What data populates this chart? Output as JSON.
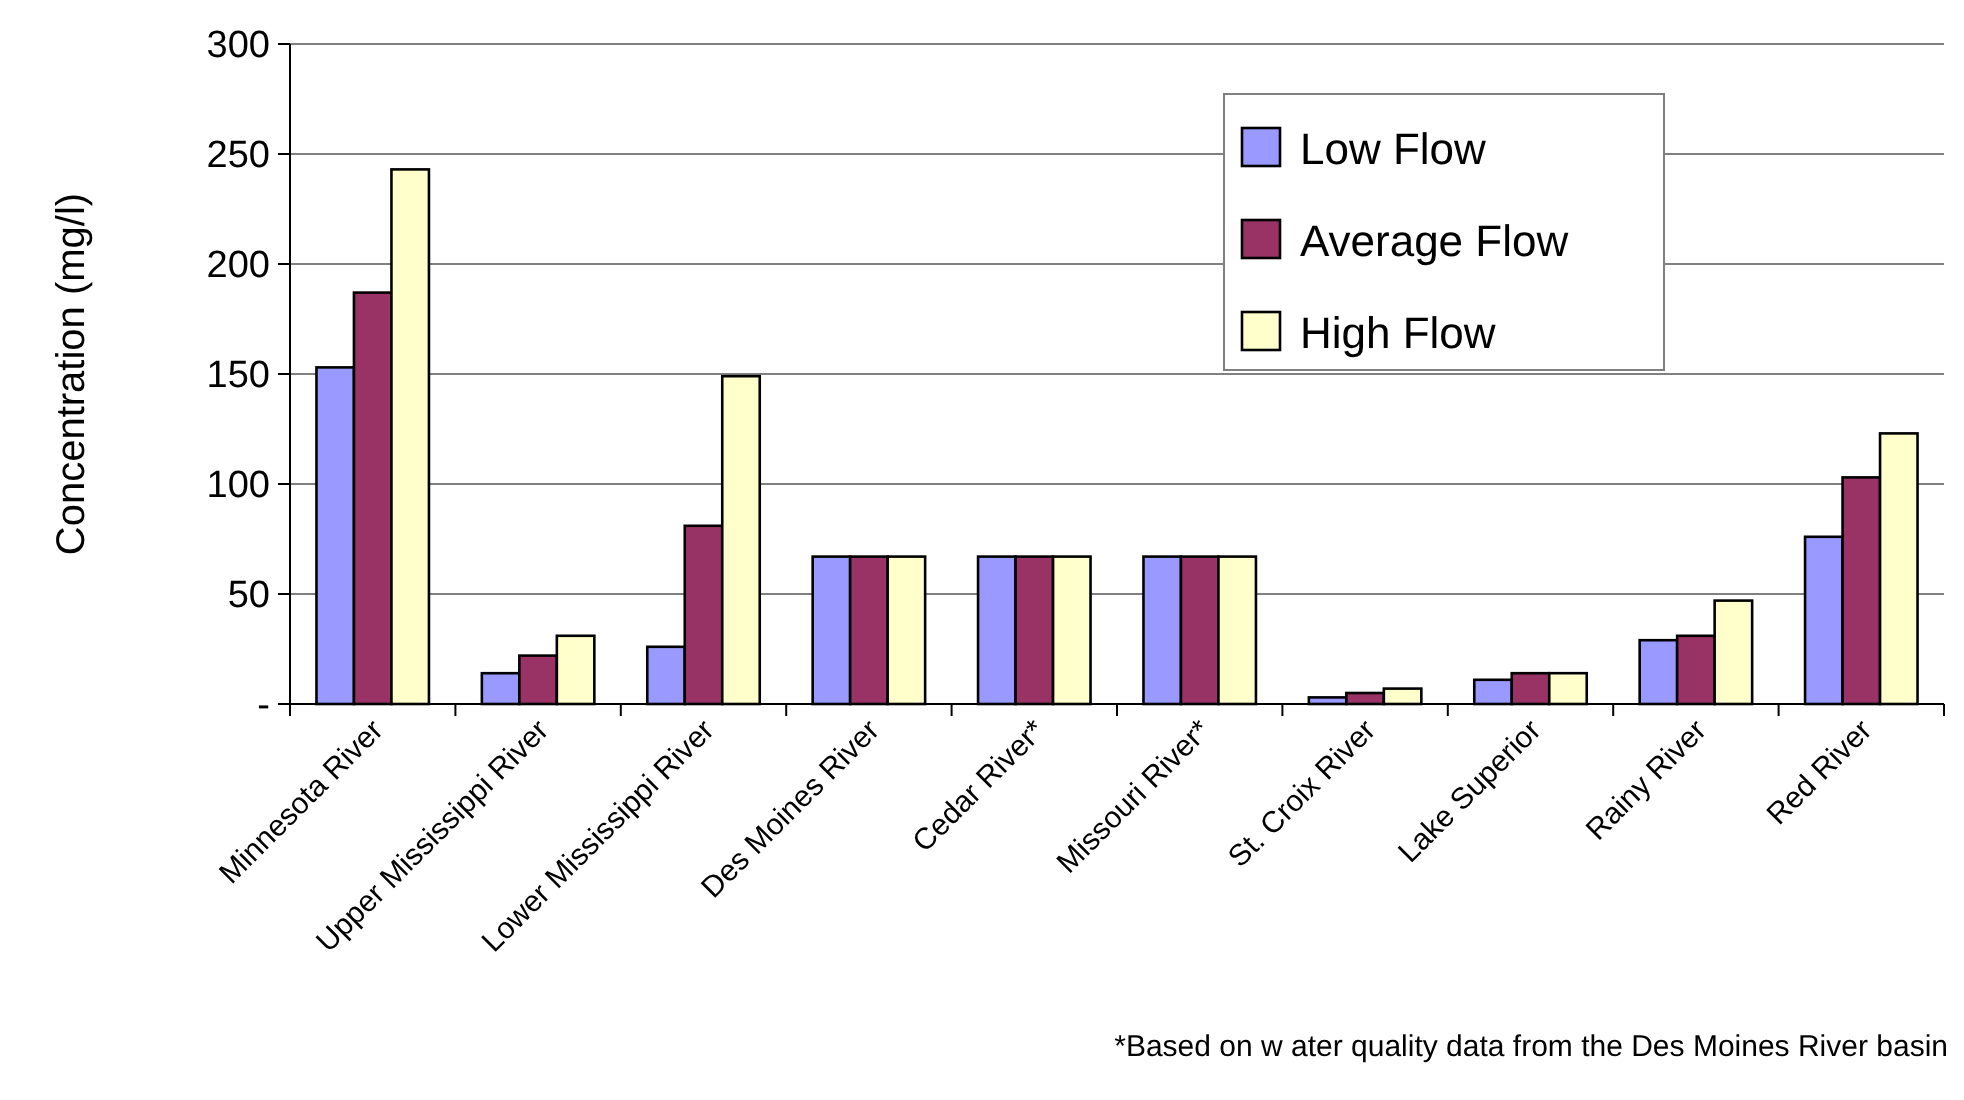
{
  "chart_data": {
    "type": "bar",
    "ylabel": "Concentration (mg/l)",
    "categories": [
      "Minnesota River",
      "Upper Mississippi River",
      "Lower Mississippi River",
      "Des Moines River",
      "Cedar River*",
      "Missouri River*",
      "St. Croix River",
      "Lake Superior",
      "Rainy River",
      "Red River"
    ],
    "series": [
      {
        "name": "Low Flow",
        "color": "#9999ff",
        "values": [
          153,
          14,
          26,
          67,
          67,
          67,
          3,
          11,
          29,
          76
        ]
      },
      {
        "name": "Average Flow",
        "color": "#993366",
        "values": [
          187,
          22,
          81,
          67,
          67,
          67,
          5,
          14,
          31,
          103
        ]
      },
      {
        "name": "High Flow",
        "color": "#ffffcc",
        "values": [
          243,
          31,
          149,
          67,
          67,
          67,
          7,
          14,
          47,
          123
        ]
      }
    ],
    "ylim": [
      0,
      300
    ],
    "yticks": [
      {
        "value": 0,
        "label": "-"
      },
      50,
      100,
      150,
      200,
      250,
      300
    ],
    "grid": "y",
    "legend": "top right",
    "annotations": [
      "*Based on w ater quality data from the Des Moines River basin"
    ]
  }
}
